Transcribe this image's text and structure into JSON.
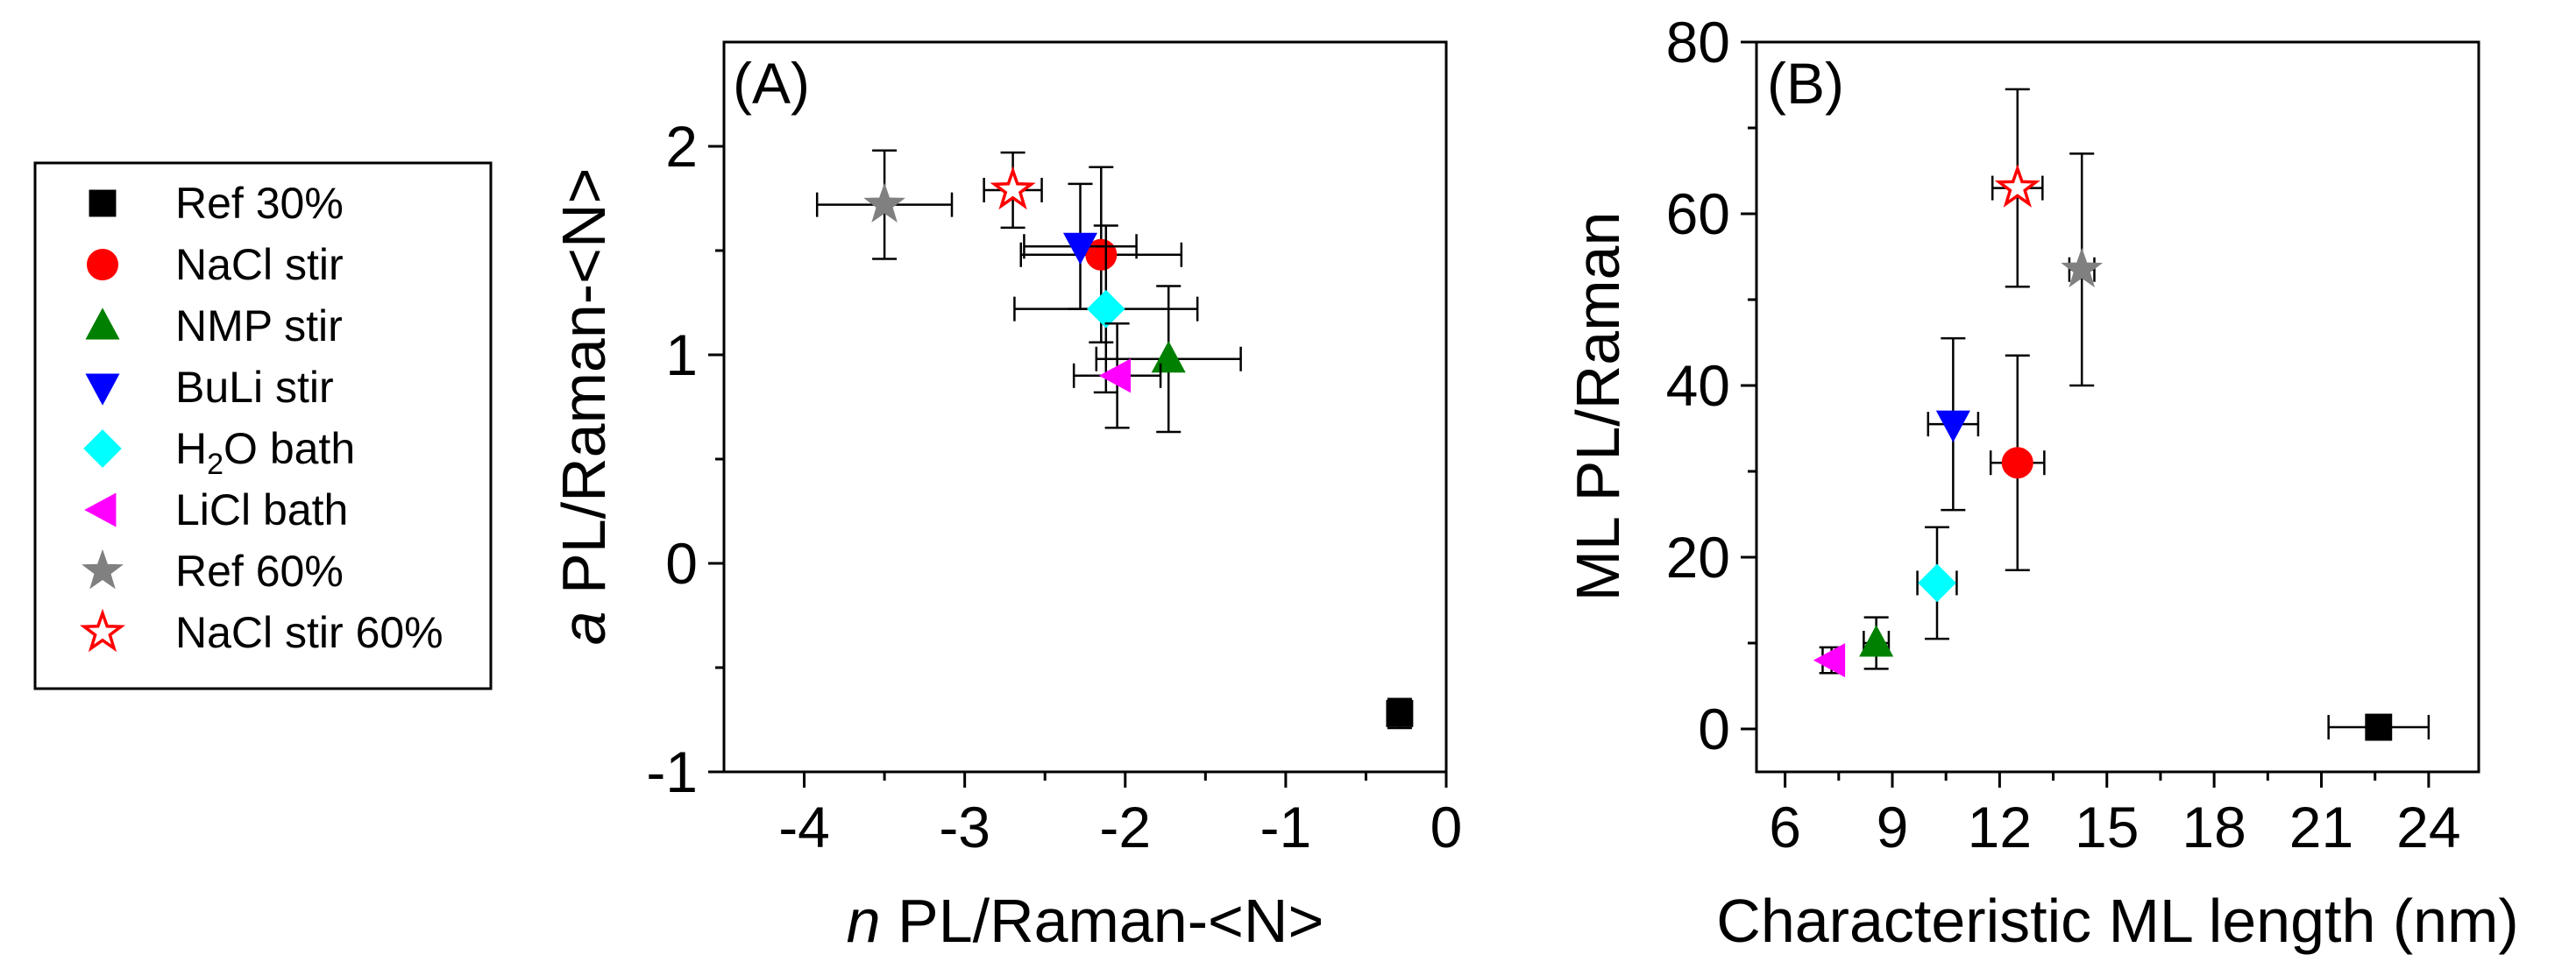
{
  "series": [
    {
      "name": "Ref 30%",
      "marker": "square",
      "fill": "#000000",
      "stroke": "#000000"
    },
    {
      "name": "NaCl stir",
      "marker": "circle",
      "fill": "#ff0000",
      "stroke": "#ff0000"
    },
    {
      "name": "NMP stir",
      "marker": "triangle-up",
      "fill": "#008000",
      "stroke": "#008000"
    },
    {
      "name": "BuLi stir",
      "marker": "triangle-down",
      "fill": "#0000ff",
      "stroke": "#0000ff"
    },
    {
      "name": "H2O bath",
      "name_parts": [
        "H",
        "2",
        "O bath"
      ],
      "marker": "diamond",
      "fill": "#00ffff",
      "stroke": "#00ffff"
    },
    {
      "name": "LiCl bath",
      "marker": "triangle-left",
      "fill": "#ff00ff",
      "stroke": "#ff00ff"
    },
    {
      "name": "Ref 60%",
      "marker": "star",
      "fill": "#808080",
      "stroke": "#808080"
    },
    {
      "name": "NaCl stir 60%",
      "marker": "star-open",
      "fill": "#ffffff",
      "stroke": "#ff0000"
    }
  ],
  "chart_data": [
    {
      "type": "scatter",
      "panel_label": "(A)",
      "xlabel": "n PL/Raman-<N>",
      "xlabel_parts": {
        "italic": "n",
        "rest": " PL/Raman-<N>"
      },
      "ylabel": "a PL/Raman-<N>",
      "ylabel_parts": {
        "italic": "a",
        "rest": " PL/Raman-<N>"
      },
      "xlim": [
        -4.5,
        0
      ],
      "ylim": [
        -1,
        2.5
      ],
      "xticks": [
        -4,
        -3,
        -2,
        -1,
        0
      ],
      "yticks": [
        -1,
        0,
        1,
        2
      ],
      "xtick_labels": [
        "-4",
        "-3",
        "-2",
        "-1",
        "0"
      ],
      "ytick_labels": [
        "-1",
        "0",
        "1",
        "2"
      ],
      "points": [
        {
          "series": "Ref 30%",
          "x": -0.29,
          "y": -0.72,
          "xerr": 0.05,
          "yerr": 0.07
        },
        {
          "series": "NaCl stir",
          "x": -2.15,
          "y": 1.48,
          "xerr": 0.5,
          "yerr": 0.42
        },
        {
          "series": "NMP stir",
          "x": -1.73,
          "y": 0.98,
          "xerr": 0.45,
          "yerr": 0.35
        },
        {
          "series": "BuLi stir",
          "x": -2.28,
          "y": 1.52,
          "xerr": 0.35,
          "yerr": 0.3
        },
        {
          "series": "H2O bath",
          "x": -2.12,
          "y": 1.22,
          "xerr": 0.57,
          "yerr": 0.4
        },
        {
          "series": "LiCl bath",
          "x": -2.05,
          "y": 0.9,
          "xerr": 0.27,
          "yerr": 0.25
        },
        {
          "series": "Ref 60%",
          "x": -3.5,
          "y": 1.72,
          "xerr": 0.42,
          "yerr": 0.26
        },
        {
          "series": "NaCl stir 60%",
          "x": -2.7,
          "y": 1.79,
          "xerr": 0.18,
          "yerr": 0.18
        }
      ]
    },
    {
      "type": "scatter",
      "panel_label": "(B)",
      "xlabel": "Characteristic ML length (nm)",
      "ylabel": "ML PL/Raman",
      "xlim": [
        5.2,
        25.4
      ],
      "ylim": [
        -5,
        80
      ],
      "xticks": [
        6,
        9,
        12,
        15,
        18,
        21,
        24
      ],
      "yticks": [
        0,
        20,
        40,
        60,
        80
      ],
      "xtick_labels": [
        "6",
        "9",
        "12",
        "15",
        "18",
        "21",
        "24"
      ],
      "ytick_labels": [
        "0",
        "20",
        "40",
        "60",
        "80"
      ],
      "points": [
        {
          "series": "Ref 30%",
          "x": 22.6,
          "y": 0.2,
          "xerr": 1.4,
          "yerr": 0
        },
        {
          "series": "NaCl stir",
          "x": 12.5,
          "y": 31,
          "xerr": 0.75,
          "yerr": 12.5
        },
        {
          "series": "NMP stir",
          "x": 8.55,
          "y": 10,
          "xerr": 0.35,
          "yerr": 3
        },
        {
          "series": "BuLi stir",
          "x": 10.7,
          "y": 35.5,
          "xerr": 0.7,
          "yerr": 10
        },
        {
          "series": "H2O bath",
          "x": 10.25,
          "y": 17,
          "xerr": 0.55,
          "yerr": 6.5
        },
        {
          "series": "LiCl bath",
          "x": 7.3,
          "y": 8,
          "xerr": 0.25,
          "yerr": 1.5
        },
        {
          "series": "Ref 60%",
          "x": 14.3,
          "y": 53.5,
          "xerr": 0.35,
          "yerr": 13.5
        },
        {
          "series": "NaCl stir 60%",
          "x": 12.5,
          "y": 63,
          "xerr": 0.7,
          "yerr": 11.5
        }
      ]
    }
  ]
}
